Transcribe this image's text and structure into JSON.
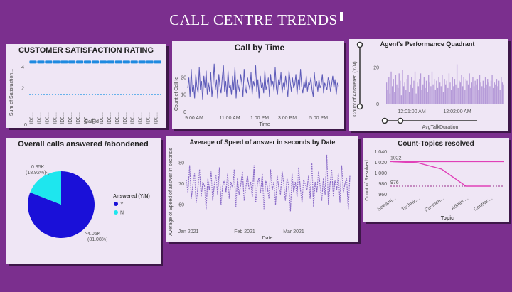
{
  "dashboard": {
    "title": "CALL CENTRE TRENDS"
  },
  "chart_data": [
    {
      "id": "csat",
      "type": "bar",
      "title": "CUSTOMER SATISFACTION RATING",
      "xlabel": "Call Id",
      "ylabel": "Sum of Satisfaction...",
      "yticks": [
        "4",
        "2"
      ],
      "ylim": [
        0,
        5
      ],
      "categories": [
        "ID0...",
        "ID0...",
        "ID0...",
        "ID0...",
        "ID0...",
        "ID0...",
        "ID0...",
        "ID0...",
        "ID0...",
        "ID0...",
        "ID0...",
        "ID0...",
        "ID0...",
        "ID0...",
        "ID0...",
        "ID0...",
        "ID0..."
      ],
      "bar_value": 4.5,
      "reference_value": 1.4,
      "bar_color": "#1f8ae0"
    },
    {
      "id": "call-by-time",
      "type": "line",
      "title": "Call by Time",
      "xlabel": "Time",
      "ylabel": "Count of Call Id",
      "xticks": [
        "9:00 AM",
        "11:00 AM",
        "1:00 PM",
        "3:00 PM",
        "5:00 PM"
      ],
      "yticks": [
        "20",
        "10",
        "0"
      ],
      "ylim": [
        0,
        32
      ],
      "values": [
        14,
        20,
        9,
        25,
        12,
        16,
        8,
        22,
        15,
        11,
        26,
        13,
        18,
        7,
        21,
        14,
        24,
        10,
        17,
        12,
        23,
        9,
        16,
        28,
        13,
        19,
        8,
        22,
        15,
        11,
        20,
        27,
        12,
        18,
        9,
        24,
        14,
        16,
        10,
        21,
        13,
        26,
        8,
        19,
        15,
        12,
        22,
        17,
        9,
        25,
        14,
        11,
        20,
        16,
        13,
        23,
        10,
        18,
        15,
        27,
        12,
        19,
        8,
        21,
        14,
        17,
        11,
        24,
        13,
        16,
        20,
        9,
        22,
        15,
        18,
        12,
        26,
        14,
        10,
        19,
        16,
        23,
        11,
        17,
        13,
        21,
        15,
        9,
        24,
        18,
        12,
        20,
        14,
        16,
        22,
        10,
        19,
        13,
        25,
        15,
        11,
        18,
        14,
        21,
        12,
        17,
        16,
        20,
        13,
        9,
        23,
        15,
        18,
        12,
        19,
        14,
        16,
        22,
        11,
        17,
        15,
        13,
        20,
        18,
        12,
        16,
        21,
        14,
        19,
        10,
        17,
        15
      ]
    },
    {
      "id": "agent-quadrant",
      "type": "bar",
      "title": "Agent's Performance Quadrant",
      "xlabel": "AvgTalkDuration",
      "ylabel": "Count of Answered (Y/N)",
      "xticks": [
        "12:01:00 AM",
        "12:02:00 AM"
      ],
      "yticks": [
        "20",
        "0"
      ],
      "ylim": [
        0,
        30
      ],
      "values": [
        12,
        8,
        15,
        6,
        18,
        10,
        14,
        7,
        16,
        11,
        9,
        17,
        13,
        5,
        19,
        10,
        12,
        8,
        14,
        16,
        7,
        11,
        15,
        9,
        13,
        18,
        6,
        12,
        10,
        14,
        17,
        8,
        11,
        15,
        9,
        13,
        7,
        16,
        12,
        10,
        18,
        11,
        14,
        8,
        13,
        9,
        15,
        12,
        10,
        16,
        7,
        14,
        11,
        13,
        9,
        17,
        12,
        8,
        15,
        10,
        14,
        11,
        22,
        9,
        13,
        12,
        16,
        10,
        15,
        8,
        14,
        13,
        11,
        17,
        9,
        12,
        15,
        10,
        13,
        11,
        14,
        8,
        16,
        12,
        10,
        13,
        9,
        15,
        11,
        14,
        12,
        10,
        13,
        16,
        9,
        12,
        11,
        14,
        10,
        13,
        8,
        15,
        12,
        11
      ]
    },
    {
      "id": "answered-pie",
      "type": "pie",
      "title": "Overall calls answered /abondened",
      "legend_title": "Answered (Y/N)",
      "series": [
        {
          "name": "Y",
          "value": 4.05,
          "label": "4.05K",
          "percent": "(81.08%)",
          "color": "#1a10d8"
        },
        {
          "name": "N",
          "value": 0.95,
          "label": "0.95K",
          "percent": "(18.92%)",
          "color": "#1ee6ee"
        }
      ]
    },
    {
      "id": "speed-of-answer",
      "type": "line",
      "title": "Average of Speed of answer in seconds by Date",
      "xlabel": "Date",
      "ylabel": "Average of Speed of answer in seconds",
      "xticks": [
        "Jan 2021",
        "Feb 2021",
        "Mar 2021"
      ],
      "yticks": [
        "80",
        "70",
        "60"
      ],
      "ylim": [
        52,
        86
      ],
      "values": [
        72,
        66,
        79,
        63,
        70,
        75,
        61,
        68,
        77,
        64,
        71,
        69,
        58,
        73,
        67,
        76,
        62,
        70,
        74,
        65,
        78,
        60,
        69,
        72,
        66,
        75,
        63,
        71,
        68,
        77,
        59,
        73,
        65,
        70,
        76,
        62,
        68,
        74,
        67,
        71,
        64,
        79,
        61,
        70,
        73,
        66,
        75,
        58,
        72,
        69,
        63,
        77,
        67,
        71,
        60,
        74,
        68,
        65,
        76,
        70,
        62,
        73,
        69,
        57,
        75,
        66,
        71,
        64,
        78,
        68,
        61,
        72,
        70,
        67,
        74,
        63,
        80,
        59,
        71,
        66,
        76,
        69,
        62,
        73,
        65,
        84,
        60,
        70,
        77,
        64,
        72,
        67,
        75,
        61,
        79,
        66,
        70,
        73,
        58,
        74
      ]
    },
    {
      "id": "topics-resolved",
      "type": "line",
      "title": "Count-Topics resolved",
      "xlabel": "Topic",
      "ylabel": "Count of Resolved",
      "categories": [
        "Streami...",
        "Technic...",
        "Paymen...",
        "Admin ...",
        "Contrac..."
      ],
      "values": [
        1022,
        1020,
        1008,
        976,
        976
      ],
      "yticks": [
        1040,
        1020,
        1000,
        980,
        960
      ],
      "ylim": [
        960,
        1040
      ],
      "max_label": "1022",
      "min_label": "976",
      "line_color": "#e040b8"
    }
  ]
}
